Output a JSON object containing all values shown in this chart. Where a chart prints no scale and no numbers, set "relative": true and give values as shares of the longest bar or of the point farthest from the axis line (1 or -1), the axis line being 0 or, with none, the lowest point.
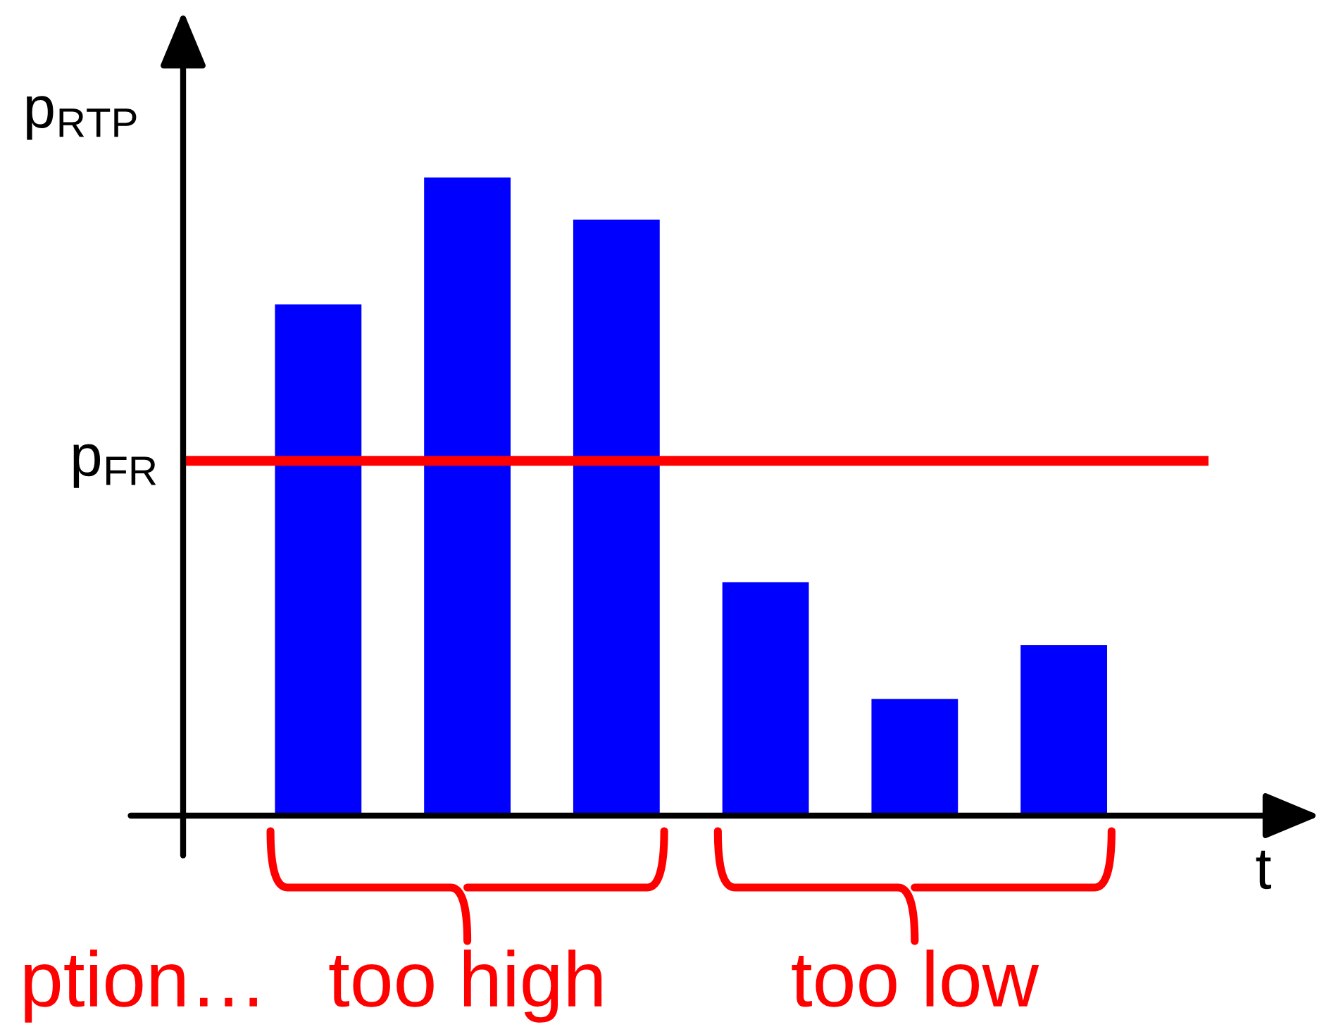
{
  "chart_data": {
    "type": "bar",
    "relative": true,
    "xlabel": "t",
    "ylabel": "p$_{RTP}$",
    "categories": [
      null,
      null,
      null,
      null,
      null,
      null
    ],
    "values": [
      0.801,
      1,
      0.934,
      0.366,
      0.183,
      0.267
    ],
    "color": "#0000ff",
    "ref_lines": [
      {
        "axis": "y",
        "value": 0.556,
        "label": "p$_{FR}$",
        "color": "#ff0000",
        "line_style": "solid"
      }
    ],
    "annotations": [
      "ption…",
      "too high",
      "too low"
    ],
    "grid": false,
    "legend": false
  }
}
